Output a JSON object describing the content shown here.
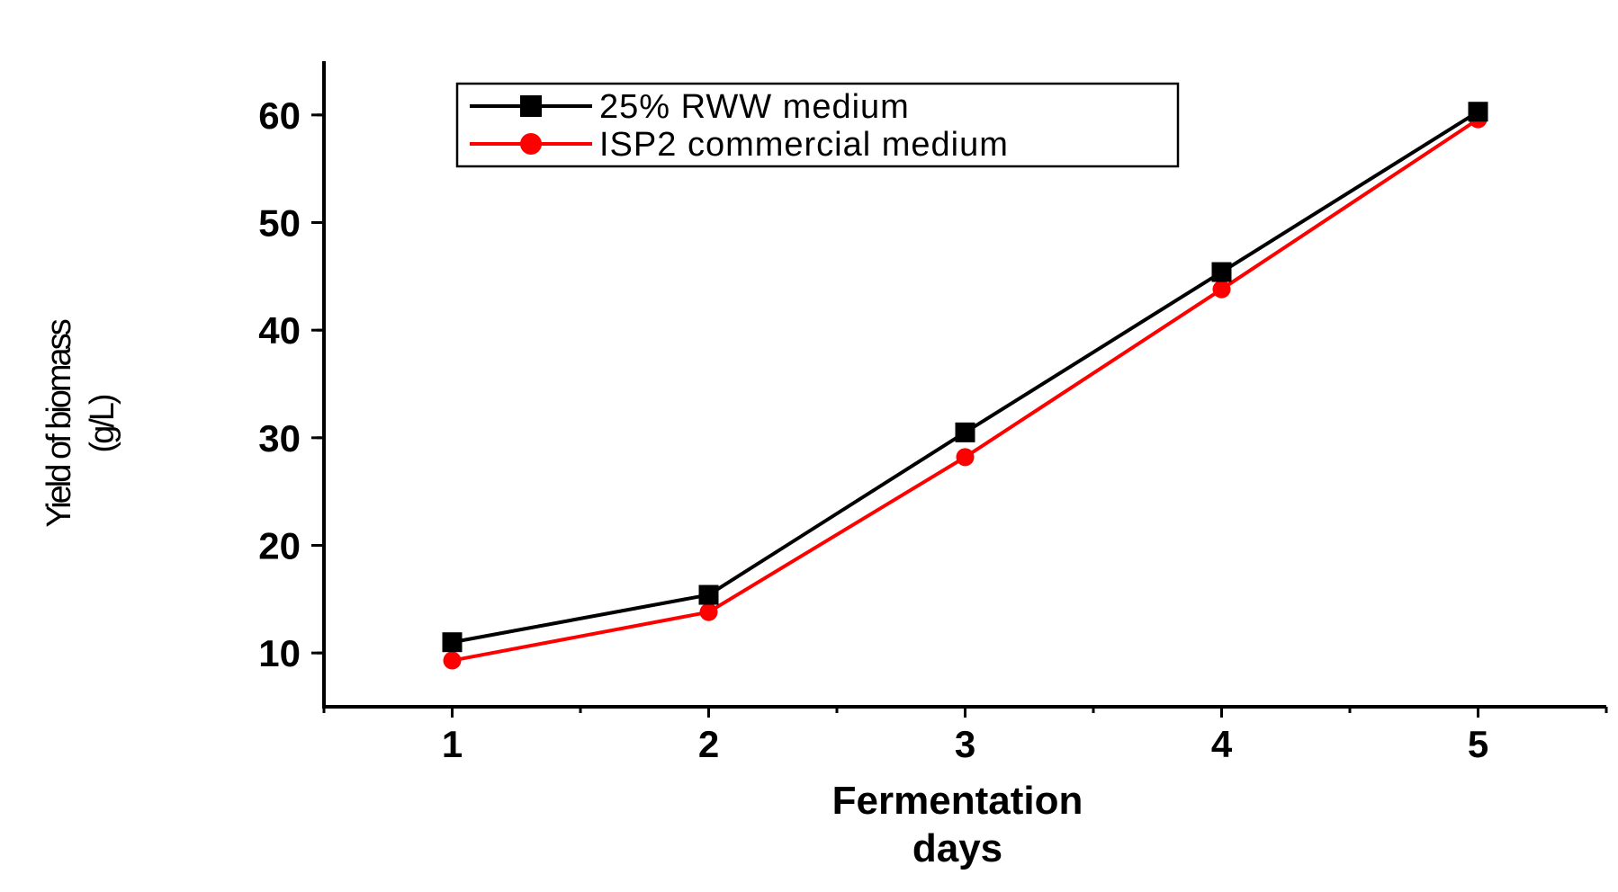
{
  "chart_data": {
    "type": "line",
    "title": "",
    "xlabel": [
      "Fermentation",
      "days"
    ],
    "ylabel": [
      "Yield of biomass",
      "(g/L)"
    ],
    "x": [
      1,
      2,
      3,
      4,
      5
    ],
    "xticks": [
      "1",
      "2",
      "3",
      "4",
      "5"
    ],
    "xlim": [
      0.5,
      5.5
    ],
    "yticks": [
      "10",
      "20",
      "30",
      "40",
      "50",
      "60"
    ],
    "ylim": [
      5,
      65
    ],
    "grid": false,
    "legend_position": "top-left",
    "series": [
      {
        "name": "25% RWW medium",
        "marker": "square",
        "color": "#000000",
        "values": [
          11.0,
          15.4,
          30.5,
          45.4,
          60.3
        ]
      },
      {
        "name": "ISP2 commercial medium",
        "marker": "circle",
        "color": "#ff0000",
        "values": [
          9.3,
          13.8,
          28.2,
          43.8,
          59.6
        ]
      }
    ]
  }
}
